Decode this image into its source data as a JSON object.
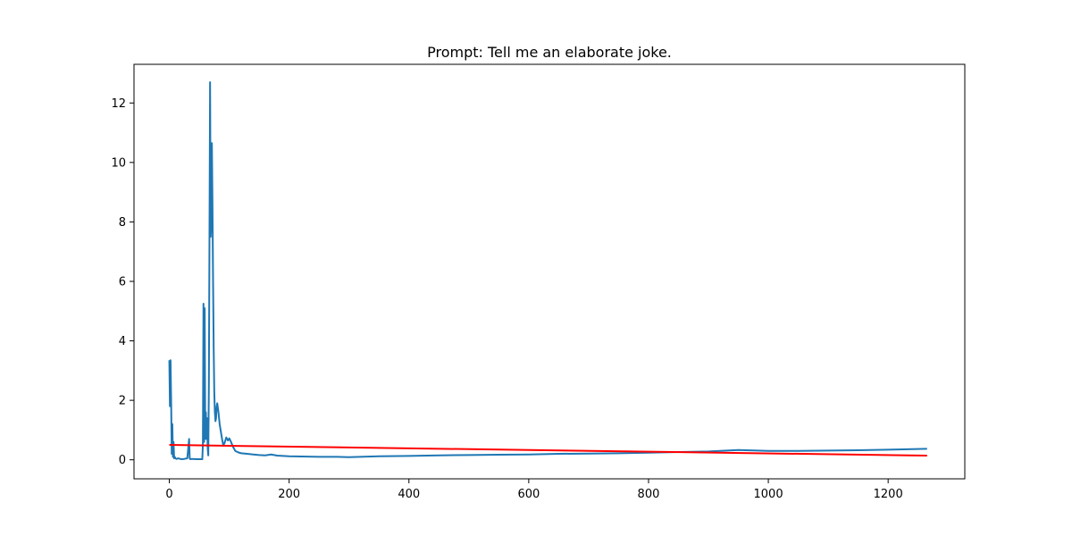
{
  "chart_data": {
    "type": "line",
    "title": "Prompt: Tell me an elaborate joke.",
    "xlabel": "",
    "ylabel": "",
    "xlim": [
      -59,
      1328
    ],
    "ylim": [
      -0.64,
      13.3
    ],
    "x_ticks": [
      0,
      200,
      400,
      600,
      800,
      1000,
      1200
    ],
    "y_ticks": [
      0,
      2,
      4,
      6,
      8,
      10,
      12
    ],
    "grid": false,
    "legend": "none",
    "series": [
      {
        "color": "#1f77b4",
        "x": [
          0,
          1,
          2,
          3,
          4,
          5,
          6,
          7,
          8,
          9,
          10,
          12,
          15,
          20,
          25,
          30,
          33,
          34,
          35,
          38,
          45,
          52,
          55,
          56,
          57,
          58,
          59,
          60,
          61,
          62,
          63,
          64,
          65,
          66,
          67,
          68,
          69,
          70,
          71,
          72,
          73,
          74,
          75,
          76,
          77,
          78,
          79,
          80,
          82,
          84,
          86,
          88,
          90,
          92,
          95,
          98,
          100,
          103,
          106,
          110,
          115,
          120,
          130,
          140,
          150,
          160,
          170,
          180,
          190,
          200,
          220,
          250,
          280,
          300,
          350,
          400,
          450,
          500,
          550,
          600,
          650,
          700,
          750,
          800,
          850,
          900,
          950,
          1000,
          1050,
          1100,
          1150,
          1200,
          1265
        ],
        "y": [
          3.35,
          1.8,
          3.35,
          2.0,
          0.2,
          1.2,
          0.1,
          0.6,
          0.05,
          0.1,
          0.05,
          0.03,
          0.05,
          0.02,
          0.03,
          0.05,
          0.7,
          0.05,
          0.02,
          0.03,
          0.02,
          0.02,
          0.02,
          0.5,
          5.25,
          0.6,
          5.1,
          0.7,
          1.6,
          0.7,
          1.4,
          0.4,
          0.15,
          2.5,
          7.4,
          12.7,
          7.5,
          8.1,
          10.65,
          8.6,
          6.0,
          3.8,
          2.3,
          1.6,
          1.3,
          1.4,
          1.8,
          1.9,
          1.6,
          1.2,
          0.95,
          0.7,
          0.5,
          0.55,
          0.75,
          0.65,
          0.72,
          0.6,
          0.45,
          0.3,
          0.25,
          0.22,
          0.2,
          0.18,
          0.16,
          0.15,
          0.18,
          0.14,
          0.13,
          0.12,
          0.11,
          0.1,
          0.1,
          0.09,
          0.12,
          0.13,
          0.15,
          0.16,
          0.17,
          0.18,
          0.2,
          0.21,
          0.22,
          0.24,
          0.26,
          0.28,
          0.33,
          0.3,
          0.3,
          0.31,
          0.32,
          0.34,
          0.37
        ]
      },
      {
        "color": "#ff0000",
        "x": [
          0,
          1265
        ],
        "y": [
          0.5,
          0.14
        ]
      }
    ]
  }
}
